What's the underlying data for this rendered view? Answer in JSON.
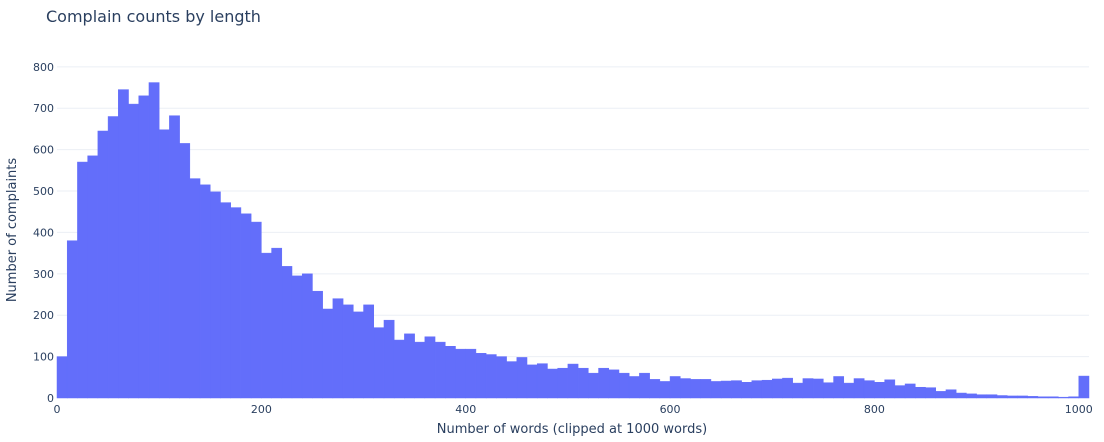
{
  "chart_data": {
    "type": "bar",
    "title": "Complain counts by length",
    "xlabel": "Number of words (clipped at 1000 words)",
    "ylabel": "Number of complaints",
    "xlim": [
      0,
      1010
    ],
    "ylim": [
      0,
      860
    ],
    "x_ticks": [
      0,
      200,
      400,
      600,
      800,
      1000
    ],
    "y_ticks": [
      0,
      100,
      200,
      300,
      400,
      500,
      600,
      700,
      800
    ],
    "bin_width": 10,
    "bin_start": 0,
    "grid": true,
    "bar_color": "#636efa",
    "values": [
      100,
      380,
      570,
      585,
      645,
      680,
      745,
      710,
      730,
      762,
      648,
      682,
      615,
      530,
      515,
      498,
      472,
      460,
      445,
      425,
      350,
      362,
      318,
      295,
      300,
      258,
      215,
      240,
      225,
      208,
      225,
      170,
      188,
      140,
      155,
      135,
      148,
      135,
      125,
      118,
      118,
      108,
      105,
      100,
      88,
      98,
      80,
      83,
      70,
      72,
      82,
      72,
      60,
      72,
      68,
      60,
      52,
      60,
      45,
      40,
      52,
      47,
      45,
      45,
      40,
      41,
      42,
      38,
      42,
      43,
      46,
      48,
      36,
      47,
      46,
      37,
      52,
      36,
      47,
      42,
      38,
      44,
      30,
      34,
      26,
      25,
      16,
      20,
      12,
      10,
      8,
      8,
      6,
      5,
      5,
      4,
      3,
      3,
      2,
      3,
      53
    ]
  }
}
